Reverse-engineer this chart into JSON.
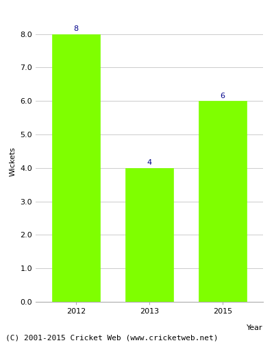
{
  "categories": [
    "2012",
    "2013",
    "2015"
  ],
  "values": [
    8,
    4,
    6
  ],
  "bar_color": "#7FFF00",
  "bar_edge_color": "#7FFF00",
  "label_color": "#00008B",
  "label_fontsize": 8,
  "ylabel": "Wickets",
  "xlabel": "Year",
  "ylim": [
    0,
    8.4
  ],
  "yticks": [
    0.0,
    1.0,
    2.0,
    3.0,
    4.0,
    5.0,
    6.0,
    7.0,
    8.0
  ],
  "grid_color": "#cccccc",
  "background_color": "#ffffff",
  "footer_text": "(C) 2001-2015 Cricket Web (www.cricketweb.net)",
  "footer_fontsize": 8,
  "bar_width": 0.65,
  "tick_fontsize": 8
}
